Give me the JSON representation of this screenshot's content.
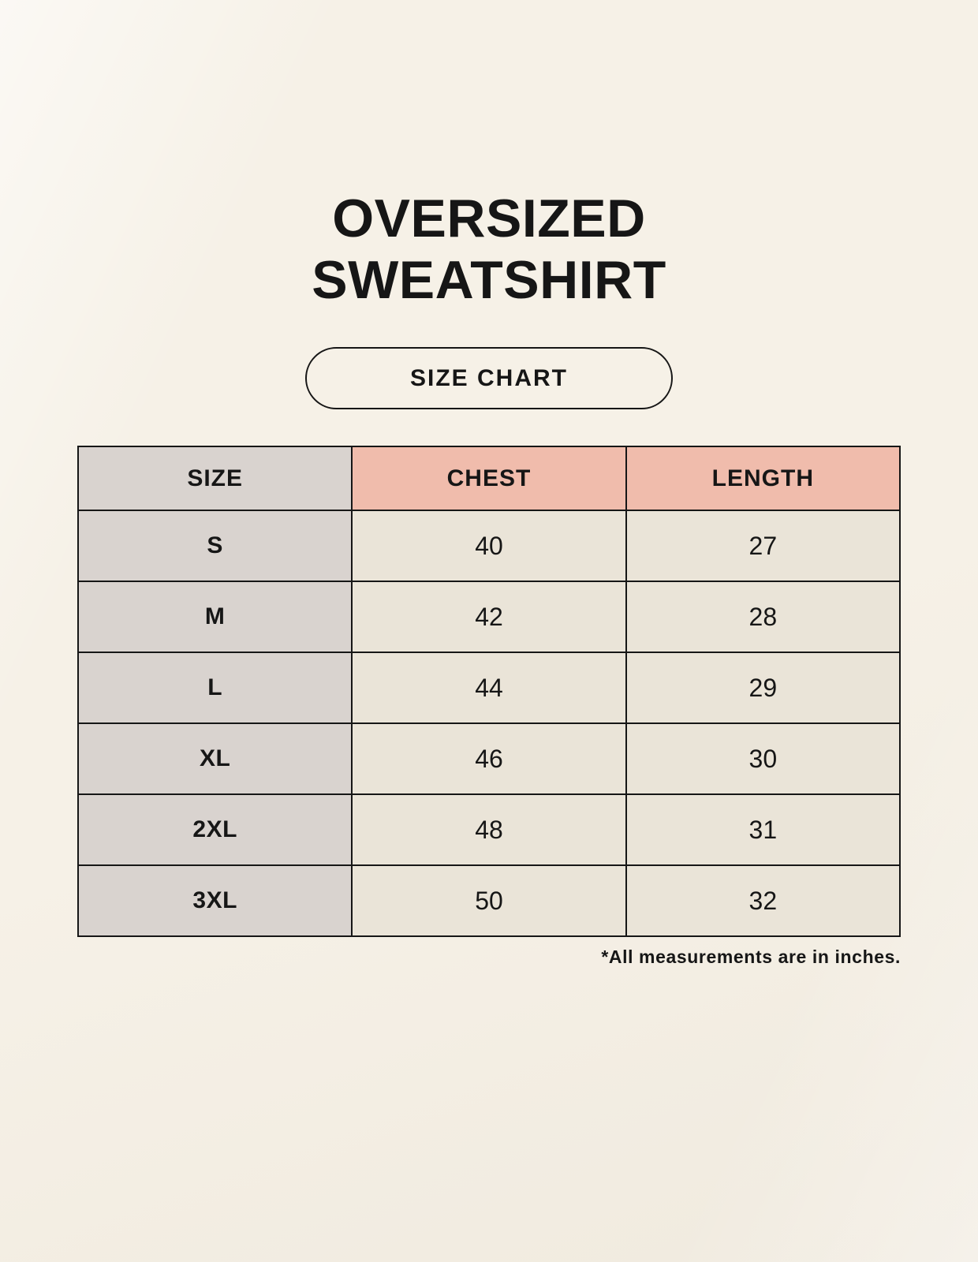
{
  "header": {
    "title_line1": "OVERSIZED",
    "title_line2": "SWEATSHIRT"
  },
  "button": {
    "label": "SIZE CHART"
  },
  "footnote": "*All measurements are in inches.",
  "colors": {
    "background": "#f6f1e7",
    "header_size_bg": "#d9d3cf",
    "header_measure_bg": "#f0bcac",
    "size_col_bg": "#d9d3cf",
    "cell_bg": "#eae4d8",
    "border": "#161616",
    "text": "#161616"
  },
  "chart_data": {
    "type": "table",
    "title": "OVERSIZED SWEATSHIRT",
    "columns": [
      "SIZE",
      "CHEST",
      "LENGTH"
    ],
    "rows": [
      [
        "S",
        "40",
        "27"
      ],
      [
        "M",
        "42",
        "28"
      ],
      [
        "L",
        "44",
        "29"
      ],
      [
        "XL",
        "46",
        "30"
      ],
      [
        "2XL",
        "48",
        "31"
      ],
      [
        "3XL",
        "50",
        "32"
      ]
    ],
    "units_note": "*All measurements are in inches."
  }
}
